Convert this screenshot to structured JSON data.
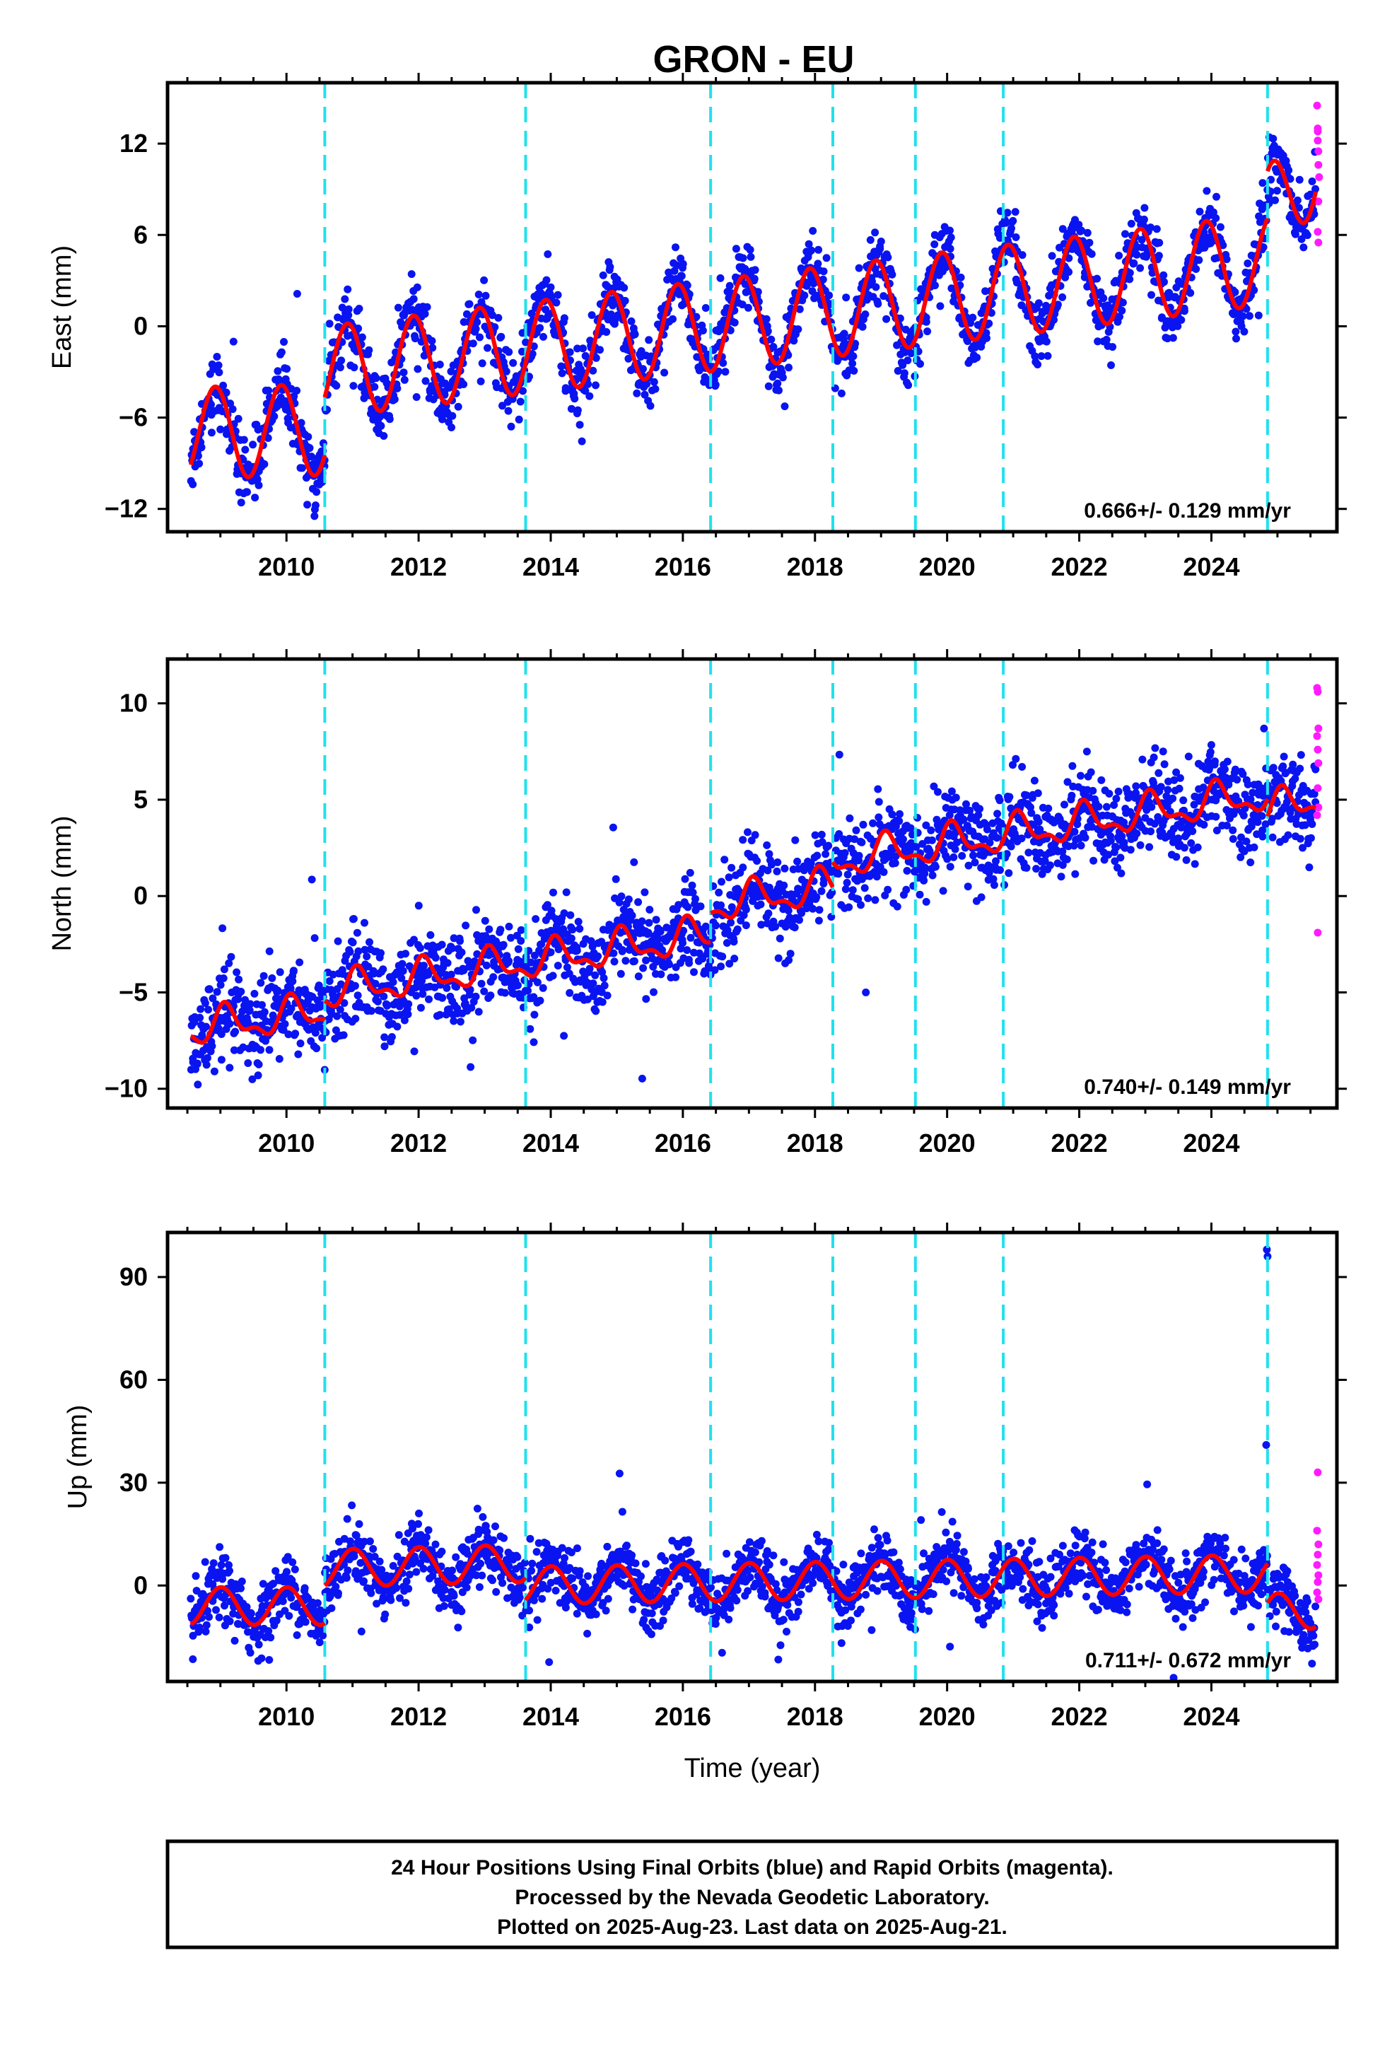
{
  "title": "GRON - EU",
  "footer": {
    "lines": [
      "24 Hour Positions Using Final Orbits (blue) and Rapid Orbits (magenta).",
      "Processed by the Nevada Geodetic Laboratory.",
      "Plotted on 2025-Aug-23. Last data on 2025-Aug-21."
    ]
  },
  "colors": {
    "final_orbits": "#0a14f0",
    "rapid_orbits": "#ff1aff",
    "model_fit": "#ff0000",
    "steps": "#22e0ee"
  },
  "chart_data": [
    {
      "type": "scatter",
      "panel": "east",
      "ylabel": "East (mm)",
      "xlabel": "",
      "xlim": [
        2008.2,
        2025.9
      ],
      "ylim": [
        -13.5,
        16
      ],
      "yticks": [
        -12,
        -6,
        0,
        6,
        12
      ],
      "xticks": [
        2010,
        2012,
        2014,
        2016,
        2018,
        2020,
        2022,
        2024
      ],
      "rate_text": "0.666+/- 0.129 mm/yr",
      "step_epochs": [
        2010.58,
        2013.62,
        2016.42,
        2018.27,
        2019.52,
        2020.85,
        2024.85
      ],
      "series": [
        {
          "name": "Final Orbits",
          "color": "#0a14f0",
          "start": 2008.55,
          "end": 2024.85,
          "noise": 1.1,
          "trend_segments": [
            {
              "from": 2008.55,
              "to": 2010.58,
              "y0": -7.0,
              "y1": -6.8
            },
            {
              "from": 2010.58,
              "to": 2024.85,
              "y0": -3.0,
              "y1": 4.4
            }
          ],
          "annual_amplitude": 3.0,
          "annual_phase": 2.05,
          "points_per_year": 120
        },
        {
          "name": "Final Orbits (post-step)",
          "color": "#0a14f0",
          "start": 2024.85,
          "end": 2025.58,
          "noise": 1.1,
          "trend_segments": [
            {
              "from": 2024.85,
              "to": 2025.58,
              "y0": 7.5,
              "y1": 10.5
            }
          ],
          "annual_amplitude": 3.0,
          "annual_phase": 2.05,
          "points_per_year": 120
        },
        {
          "name": "Rapid Orbits",
          "color": "#ff1aff",
          "points": [
            [
              2025.6,
              14.5
            ],
            [
              2025.61,
              13.0
            ],
            [
              2025.61,
              12.2
            ],
            [
              2025.62,
              11.5
            ],
            [
              2025.62,
              10.6
            ],
            [
              2025.63,
              9.8
            ],
            [
              2025.62,
              8.2
            ],
            [
              2025.61,
              6.2
            ],
            [
              2025.62,
              5.5
            ],
            [
              2025.61,
              12.8
            ]
          ]
        }
      ],
      "model": {
        "segments": [
          {
            "from": 2008.55,
            "to": 2010.58,
            "y0": -7.0,
            "y1": -6.8
          },
          {
            "from": 2010.58,
            "to": 2024.85,
            "y0": -3.0,
            "y1": 4.4
          },
          {
            "from": 2024.85,
            "to": 2025.58,
            "y0": 7.5,
            "y1": 10.5
          }
        ],
        "annual_amplitude": 3.0,
        "annual_phase": 2.05,
        "semiannual_amplitude": 0.0
      }
    },
    {
      "type": "scatter",
      "panel": "north",
      "ylabel": "North (mm)",
      "xlabel": "",
      "xlim": [
        2008.2,
        2025.9
      ],
      "ylim": [
        -11,
        12.3
      ],
      "yticks": [
        -10,
        -5,
        0,
        5,
        10
      ],
      "xticks": [
        2010,
        2012,
        2014,
        2016,
        2018,
        2020,
        2022,
        2024
      ],
      "rate_text": "0.740+/- 0.149 mm/yr",
      "step_epochs": [
        2010.58,
        2013.62,
        2016.42,
        2018.27,
        2019.52,
        2020.85,
        2024.85
      ],
      "series": [
        {
          "name": "Final Orbits",
          "color": "#0a14f0",
          "start": 2008.55,
          "end": 2025.58,
          "noise": 1.2,
          "trend_segments": [
            {
              "from": 2008.55,
              "to": 2010.58,
              "y0": -6.9,
              "y1": -6.0
            },
            {
              "from": 2010.58,
              "to": 2016.42,
              "y0": -5.0,
              "y1": -2.0
            },
            {
              "from": 2016.42,
              "to": 2018.27,
              "y0": -0.5,
              "y1": 0.5
            },
            {
              "from": 2018.27,
              "to": 2024.85,
              "y0": 1.8,
              "y1": 5.3
            },
            {
              "from": 2024.85,
              "to": 2025.58,
              "y0": 4.4,
              "y1": 5.0
            }
          ],
          "annual_amplitude": 0.8,
          "annual_phase": 1.0,
          "points_per_year": 120
        },
        {
          "name": "Rapid Orbits",
          "color": "#ff1aff",
          "points": [
            [
              2025.6,
              10.8
            ],
            [
              2025.61,
              10.6
            ],
            [
              2025.62,
              8.7
            ],
            [
              2025.6,
              8.3
            ],
            [
              2025.61,
              7.6
            ],
            [
              2025.62,
              6.9
            ],
            [
              2025.61,
              5.6
            ],
            [
              2025.62,
              4.6
            ],
            [
              2025.6,
              4.2
            ],
            [
              2025.61,
              -1.9
            ]
          ]
        }
      ],
      "model": {
        "segments": [
          {
            "from": 2008.55,
            "to": 2010.58,
            "y0": -6.9,
            "y1": -6.0
          },
          {
            "from": 2010.58,
            "to": 2016.42,
            "y0": -5.0,
            "y1": -2.0
          },
          {
            "from": 2016.42,
            "to": 2018.27,
            "y0": -0.5,
            "y1": 0.5
          },
          {
            "from": 2018.27,
            "to": 2024.85,
            "y0": 1.8,
            "y1": 5.3
          },
          {
            "from": 2024.85,
            "to": 2025.58,
            "y0": 4.4,
            "y1": 5.0
          }
        ],
        "annual_amplitude": 0.8,
        "annual_phase": 1.0,
        "semiannual_amplitude": 0.4
      }
    },
    {
      "type": "scatter",
      "panel": "up",
      "ylabel": "Up (mm)",
      "xlabel": "Time (year)",
      "xlim": [
        2008.2,
        2025.9
      ],
      "ylim": [
        -28,
        103
      ],
      "yticks": [
        0,
        30,
        60,
        90
      ],
      "xticks": [
        2010,
        2012,
        2014,
        2016,
        2018,
        2020,
        2022,
        2024
      ],
      "rate_text": "0.711+/- 0.672 mm/yr",
      "step_epochs": [
        2010.58,
        2013.62,
        2016.42,
        2018.27,
        2019.52,
        2020.85,
        2024.85
      ],
      "series": [
        {
          "name": "Final Orbits",
          "color": "#0a14f0",
          "start": 2008.55,
          "end": 2025.58,
          "noise": 4.5,
          "trend_segments": [
            {
              "from": 2008.55,
              "to": 2010.58,
              "y0": -6.0,
              "y1": -6.0
            },
            {
              "from": 2010.58,
              "to": 2013.62,
              "y0": 5.0,
              "y1": 6.5
            },
            {
              "from": 2013.62,
              "to": 2024.85,
              "y0": 0.0,
              "y1": 3.5
            },
            {
              "from": 2024.85,
              "to": 2025.58,
              "y0": -8.0,
              "y1": -7.0
            }
          ],
          "annual_amplitude": 5.5,
          "annual_phase": 1.5,
          "points_per_year": 120
        },
        {
          "name": "Rapid Orbits",
          "color": "#ff1aff",
          "points": [
            [
              2025.61,
              33
            ],
            [
              2025.6,
              16
            ],
            [
              2025.62,
              12
            ],
            [
              2025.61,
              9
            ],
            [
              2025.6,
              6
            ],
            [
              2025.62,
              3
            ],
            [
              2025.61,
              1
            ],
            [
              2025.6,
              -2
            ],
            [
              2025.62,
              -4
            ]
          ]
        },
        {
          "name": "Final Orbits outliers",
          "color": "#0a14f0",
          "points": [
            [
              2024.84,
              98
            ],
            [
              2024.85,
              96
            ],
            [
              2024.83,
              41
            ]
          ]
        }
      ],
      "model": {
        "segments": [
          {
            "from": 2008.55,
            "to": 2010.58,
            "y0": -6.0,
            "y1": -6.0
          },
          {
            "from": 2010.58,
            "to": 2013.62,
            "y0": 5.0,
            "y1": 6.5
          },
          {
            "from": 2013.62,
            "to": 2024.85,
            "y0": 0.0,
            "y1": 3.5
          },
          {
            "from": 2024.85,
            "to": 2025.58,
            "y0": -8.0,
            "y1": -7.0
          }
        ],
        "annual_amplitude": 5.5,
        "annual_phase": 1.5,
        "semiannual_amplitude": 0.0
      }
    }
  ]
}
